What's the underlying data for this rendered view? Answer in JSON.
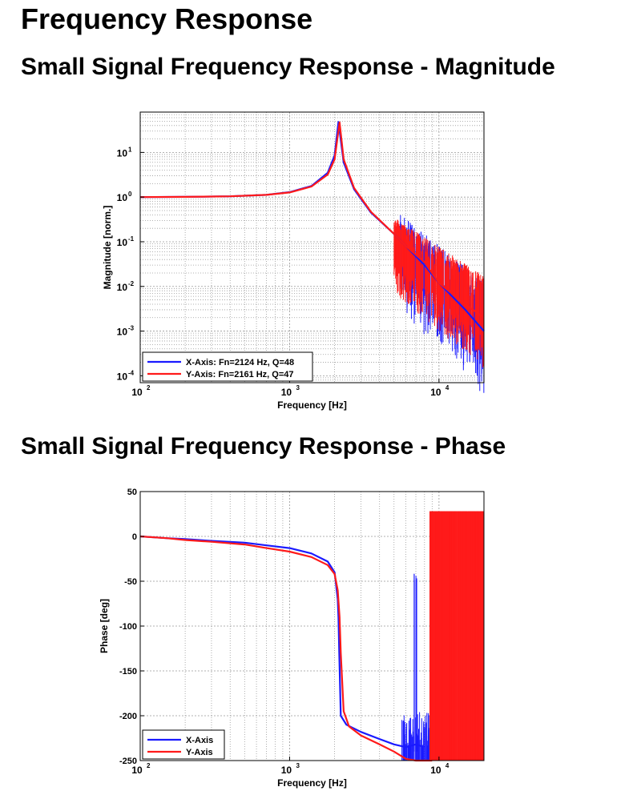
{
  "page": {
    "title": "Frequency Response",
    "magnitude_heading": "Small Signal Frequency Response - Magnitude",
    "phase_heading": "Small Signal Frequency Response - Phase"
  },
  "colors": {
    "x_axis": "#1a1aff",
    "y_axis": "#ff1a1a",
    "grid": "#999999"
  },
  "chart_data": [
    {
      "type": "line",
      "title": "Small Signal Frequency Response - Magnitude",
      "xlabel": "Frequency [Hz]",
      "ylabel": "Magnitude [norm.]",
      "xscale": "log",
      "yscale": "log",
      "xlim": [
        100,
        20000
      ],
      "ylim": [
        7e-05,
        80
      ],
      "x_ticks": [
        {
          "value": 100,
          "base": "10",
          "exp": "2"
        },
        {
          "value": 1000,
          "base": "10",
          "exp": "3"
        },
        {
          "value": 10000,
          "base": "10",
          "exp": "4"
        }
      ],
      "y_ticks": [
        {
          "value": 0.0001,
          "base": "10",
          "exp": "-4"
        },
        {
          "value": 0.001,
          "base": "10",
          "exp": "-3"
        },
        {
          "value": 0.01,
          "base": "10",
          "exp": "-2"
        },
        {
          "value": 0.1,
          "base": "10",
          "exp": "-1"
        },
        {
          "value": 1,
          "base": "10",
          "exp": "0"
        },
        {
          "value": 10,
          "base": "10",
          "exp": "1"
        }
      ],
      "grid": true,
      "legend_position": "bottom-left",
      "series": [
        {
          "name": "X-Axis: Fn=2124 Hz, Q=48",
          "color": "#1a1aff",
          "fn_hz": 2124,
          "q": 48,
          "x": [
            100,
            200,
            400,
            700,
            1000,
            1400,
            1800,
            2000,
            2124,
            2300,
            2700,
            3500,
            5000,
            6000,
            8000,
            10000,
            15000,
            20000
          ],
          "y": [
            1.0,
            1.01,
            1.04,
            1.12,
            1.29,
            1.77,
            3.5,
            8.5,
            48,
            6,
            1.5,
            0.45,
            0.15,
            0.08,
            0.03,
            0.012,
            0.003,
            0.001
          ]
        },
        {
          "name": "Y-Axis: Fn=2161 Hz, Q=47",
          "color": "#ff1a1a",
          "fn_hz": 2161,
          "q": 47,
          "x": [
            100,
            200,
            400,
            700,
            1000,
            1400,
            1800,
            2000,
            2161,
            2300,
            2700,
            3500,
            5000,
            6000,
            8000,
            10000,
            15000,
            20000
          ],
          "y": [
            1.0,
            1.01,
            1.04,
            1.12,
            1.27,
            1.72,
            3.2,
            7,
            47,
            7,
            1.6,
            0.47,
            0.15,
            0.08,
            0.035,
            0.012,
            0.004,
            0.002
          ]
        }
      ]
    },
    {
      "type": "line",
      "title": "Small Signal Frequency Response - Phase",
      "xlabel": "Frequency [Hz]",
      "ylabel": "Phase [deg]",
      "xscale": "log",
      "yscale": "linear",
      "xlim": [
        100,
        20000
      ],
      "ylim": [
        -250,
        50
      ],
      "x_ticks": [
        {
          "value": 100,
          "base": "10",
          "exp": "2"
        },
        {
          "value": 1000,
          "base": "10",
          "exp": "3"
        },
        {
          "value": 10000,
          "base": "10",
          "exp": "4"
        }
      ],
      "y_ticks": [
        {
          "value": 50,
          "label": "50"
        },
        {
          "value": 0,
          "label": "0"
        },
        {
          "value": -50,
          "label": "-50"
        },
        {
          "value": -100,
          "label": "-100"
        },
        {
          "value": -150,
          "label": "-150"
        },
        {
          "value": -200,
          "label": "-200"
        },
        {
          "value": -250,
          "label": "-250"
        }
      ],
      "grid": true,
      "legend_position": "bottom-left",
      "series": [
        {
          "name": "X-Axis",
          "color": "#1a1aff",
          "x": [
            100,
            150,
            200,
            300,
            500,
            700,
            1000,
            1400,
            1800,
            2000,
            2100,
            2124,
            2150,
            2200,
            2400,
            3000,
            4000,
            5000,
            6000,
            7000,
            8000
          ],
          "y": [
            0,
            -2,
            -3,
            -5,
            -7,
            -10,
            -13,
            -19,
            -28,
            -40,
            -70,
            -90,
            -130,
            -200,
            -210,
            -218,
            -226,
            -232,
            -235,
            -232,
            -235
          ]
        },
        {
          "name": "Y-Axis",
          "color": "#ff1a1a",
          "x": [
            100,
            150,
            200,
            300,
            500,
            700,
            1000,
            1400,
            1800,
            2000,
            2100,
            2161,
            2200,
            2300,
            2500,
            3000,
            4000,
            5000,
            6000,
            7000,
            8000,
            9000
          ],
          "y": [
            0,
            -2,
            -4,
            -6,
            -9,
            -13,
            -17,
            -23,
            -32,
            -42,
            -60,
            -90,
            -130,
            -195,
            -212,
            -222,
            -232,
            -240,
            -248,
            -252,
            -256,
            -258
          ]
        }
      ]
    }
  ]
}
